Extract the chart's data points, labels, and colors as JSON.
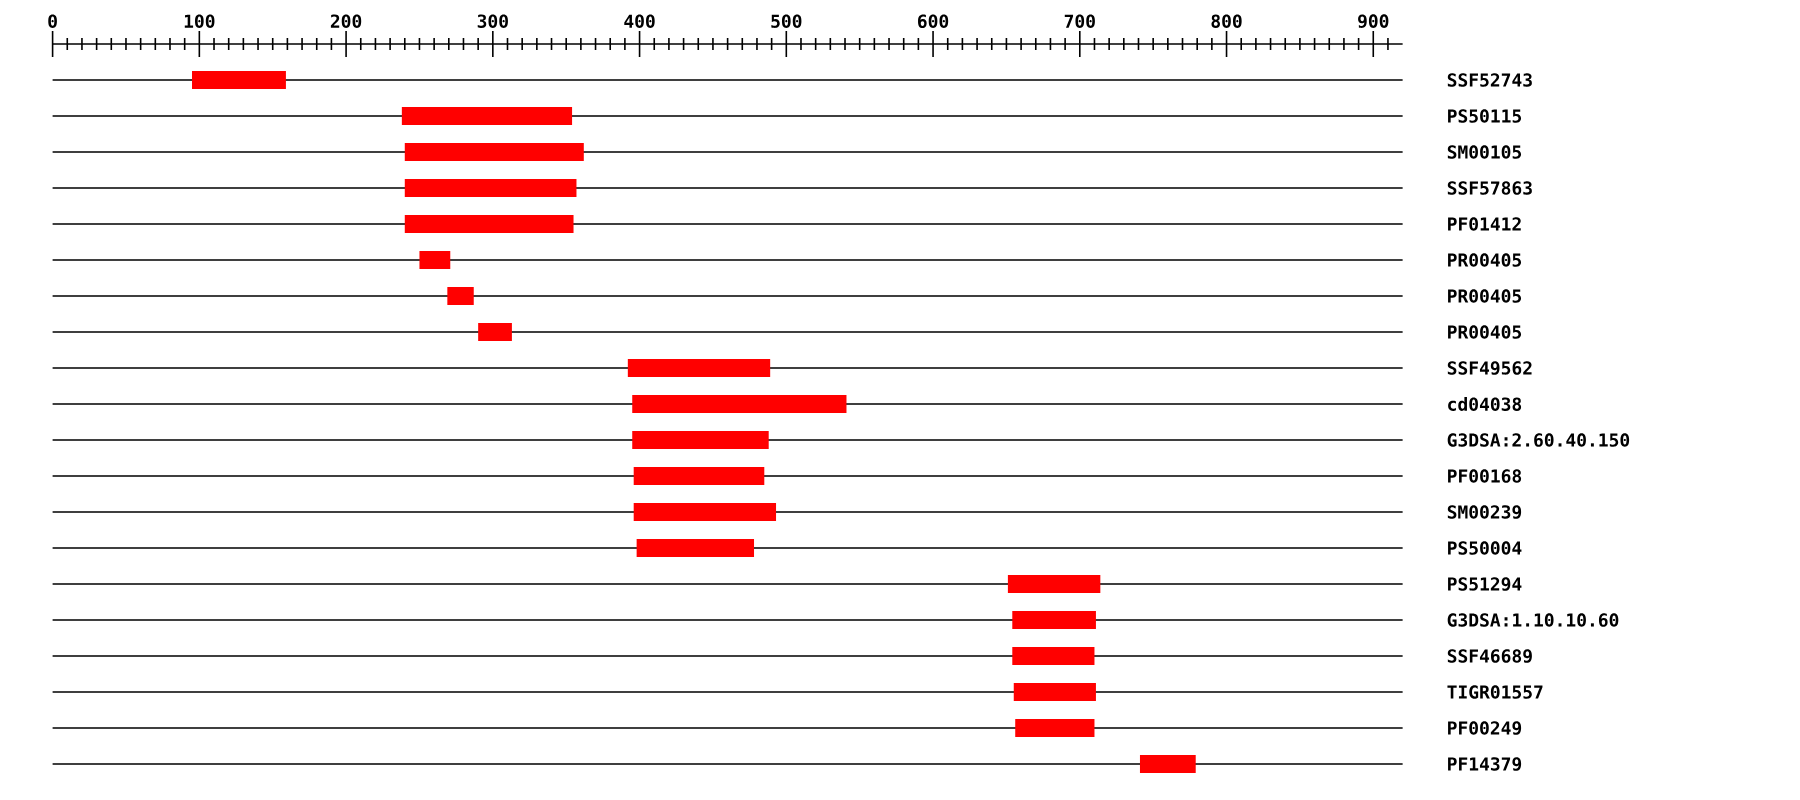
{
  "chart_data": {
    "type": "bar",
    "orientation": "horizontal",
    "color": "#ff0000",
    "grid": "y",
    "categories": [
      "SSF52743",
      "PS50115",
      "SM00105",
      "SSF57863",
      "PF01412",
      "PR00405",
      "PR00405",
      "PR00405",
      "SSF49562",
      "cd04038",
      "G3DSA:2.60.40.150",
      "PF00168",
      "SM00239",
      "PS50004",
      "PS51294",
      "G3DSA:1.10.10.60",
      "SSF46689",
      "TIGR01557",
      "PF00249",
      "PF14379"
    ],
    "base": [
      95,
      238,
      240,
      240,
      240,
      250,
      269,
      290,
      392,
      395,
      395,
      396,
      396,
      398,
      651,
      654,
      654,
      655,
      656,
      741
    ],
    "values": [
      64,
      116,
      122,
      117,
      115,
      21,
      18,
      23,
      97,
      146,
      93,
      89,
      97,
      80,
      63,
      57,
      56,
      56,
      54,
      38
    ],
    "xlim": [
      0,
      920
    ],
    "xticks": [
      0,
      100,
      200,
      300,
      400,
      500,
      600,
      700,
      800,
      900,
      {
        "value": 10,
        "label": null
      },
      {
        "value": 20,
        "label": null
      },
      {
        "value": 30,
        "label": null
      },
      {
        "value": 40,
        "label": null
      },
      {
        "value": 50,
        "label": null
      },
      {
        "value": 60,
        "label": null
      },
      {
        "value": 70,
        "label": null
      },
      {
        "value": 80,
        "label": null
      },
      {
        "value": 90,
        "label": null
      },
      {
        "value": 110,
        "label": null
      },
      {
        "value": 120,
        "label": null
      },
      {
        "value": 130,
        "label": null
      },
      {
        "value": 140,
        "label": null
      },
      {
        "value": 150,
        "label": null
      },
      {
        "value": 160,
        "label": null
      },
      {
        "value": 170,
        "label": null
      },
      {
        "value": 180,
        "label": null
      },
      {
        "value": 190,
        "label": null
      },
      {
        "value": 210,
        "label": null
      },
      {
        "value": 220,
        "label": null
      },
      {
        "value": 230,
        "label": null
      },
      {
        "value": 240,
        "label": null
      },
      {
        "value": 250,
        "label": null
      },
      {
        "value": 260,
        "label": null
      },
      {
        "value": 270,
        "label": null
      },
      {
        "value": 280,
        "label": null
      },
      {
        "value": 290,
        "label": null
      },
      {
        "value": 310,
        "label": null
      },
      {
        "value": 320,
        "label": null
      },
      {
        "value": 330,
        "label": null
      },
      {
        "value": 340,
        "label": null
      },
      {
        "value": 350,
        "label": null
      },
      {
        "value": 360,
        "label": null
      },
      {
        "value": 370,
        "label": null
      },
      {
        "value": 380,
        "label": null
      },
      {
        "value": 390,
        "label": null
      },
      {
        "value": 410,
        "label": null
      },
      {
        "value": 420,
        "label": null
      },
      {
        "value": 430,
        "label": null
      },
      {
        "value": 440,
        "label": null
      },
      {
        "value": 450,
        "label": null
      },
      {
        "value": 460,
        "label": null
      },
      {
        "value": 470,
        "label": null
      },
      {
        "value": 480,
        "label": null
      },
      {
        "value": 490,
        "label": null
      },
      {
        "value": 510,
        "label": null
      },
      {
        "value": 520,
        "label": null
      },
      {
        "value": 530,
        "label": null
      },
      {
        "value": 540,
        "label": null
      },
      {
        "value": 550,
        "label": null
      },
      {
        "value": 560,
        "label": null
      },
      {
        "value": 570,
        "label": null
      },
      {
        "value": 580,
        "label": null
      },
      {
        "value": 590,
        "label": null
      },
      {
        "value": 610,
        "label": null
      },
      {
        "value": 620,
        "label": null
      },
      {
        "value": 630,
        "label": null
      },
      {
        "value": 640,
        "label": null
      },
      {
        "value": 650,
        "label": null
      },
      {
        "value": 660,
        "label": null
      },
      {
        "value": 670,
        "label": null
      },
      {
        "value": 680,
        "label": null
      },
      {
        "value": 690,
        "label": null
      },
      {
        "value": 710,
        "label": null
      },
      {
        "value": 720,
        "label": null
      },
      {
        "value": 730,
        "label": null
      },
      {
        "value": 740,
        "label": null
      },
      {
        "value": 750,
        "label": null
      },
      {
        "value": 760,
        "label": null
      },
      {
        "value": 770,
        "label": null
      },
      {
        "value": 780,
        "label": null
      },
      {
        "value": 790,
        "label": null
      },
      {
        "value": 810,
        "label": null
      },
      {
        "value": 820,
        "label": null
      },
      {
        "value": 830,
        "label": null
      },
      {
        "value": 840,
        "label": null
      },
      {
        "value": 850,
        "label": null
      },
      {
        "value": 860,
        "label": null
      },
      {
        "value": 870,
        "label": null
      },
      {
        "value": 880,
        "label": null
      },
      {
        "value": 890,
        "label": null
      },
      {
        "value": 910,
        "label": null
      }
    ]
  }
}
